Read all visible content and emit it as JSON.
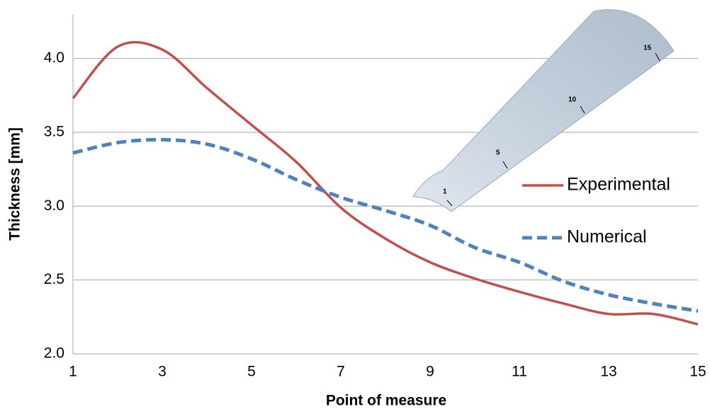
{
  "chart_data": {
    "type": "line",
    "x_label": "Point of measure",
    "y_label": "Thickness [mm]",
    "x": [
      1,
      2,
      3,
      4,
      5,
      6,
      7,
      8,
      9,
      10,
      11,
      12,
      13,
      14,
      15
    ],
    "series": [
      {
        "name": "Experimental",
        "color": "#c0504d",
        "dash": false,
        "values": [
          3.73,
          4.08,
          4.06,
          3.8,
          3.55,
          3.3,
          2.99,
          2.78,
          2.62,
          2.51,
          2.42,
          2.34,
          2.27,
          2.27,
          2.2
        ]
      },
      {
        "name": "Numerical",
        "color": "#4f81bd",
        "dash": true,
        "values": [
          3.36,
          3.43,
          3.45,
          3.42,
          3.32,
          3.18,
          3.06,
          2.97,
          2.87,
          2.72,
          2.62,
          2.49,
          2.4,
          2.34,
          2.29
        ]
      }
    ],
    "xlim": [
      1,
      15
    ],
    "xticks": [
      1,
      3,
      5,
      7,
      9,
      11,
      13,
      15
    ],
    "ylim": [
      2,
      4.3
    ],
    "yticks": [
      {
        "value": 2,
        "label": "2.0"
      },
      2.5,
      {
        "value": 3,
        "label": "3.0"
      },
      3.5,
      {
        "value": 4,
        "label": "4.0"
      }
    ],
    "grid": true,
    "legend": "right",
    "annotations": [
      "1",
      "5",
      "10",
      "15"
    ]
  }
}
